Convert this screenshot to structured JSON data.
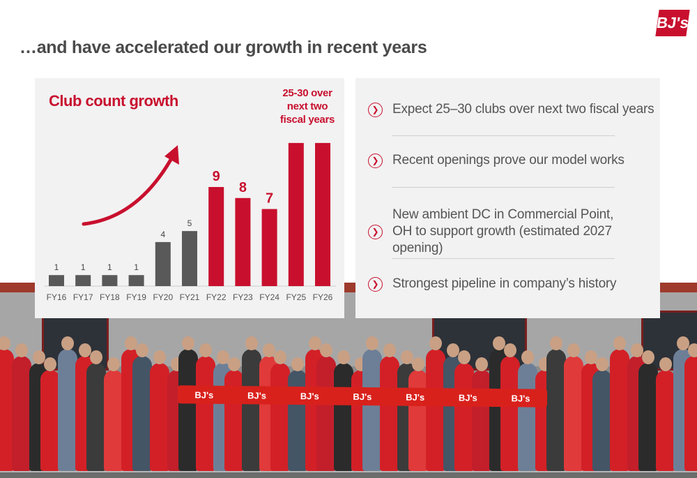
{
  "logo_text": "BJ's",
  "headline": "…and have accelerated our growth in recent years",
  "chart_data": {
    "type": "bar",
    "title": "Club count growth",
    "annotation": "25-30 over next two fiscal years",
    "categories": [
      "FY16",
      "FY17",
      "FY18",
      "FY19",
      "FY20",
      "FY21",
      "FY22",
      "FY23",
      "FY24",
      "FY25",
      "FY26"
    ],
    "values": [
      1,
      1,
      1,
      1,
      4,
      5,
      9,
      8,
      7,
      13,
      13
    ],
    "data_labels": [
      "1",
      "1",
      "1",
      "1",
      "4",
      "5",
      "9",
      "8",
      "7",
      "",
      ""
    ],
    "colors": [
      "#595959",
      "#595959",
      "#595959",
      "#595959",
      "#595959",
      "#595959",
      "#c8102e",
      "#c8102e",
      "#c8102e",
      "#c8102e",
      "#c8102e"
    ],
    "ylim": [
      0,
      13.5
    ],
    "grid": false,
    "xlabel": "",
    "ylabel": ""
  },
  "bullets": [
    {
      "icon": "chevron-right-icon",
      "text": "Expect 25–30 clubs over next two fiscal years"
    },
    {
      "icon": "chevron-right-icon",
      "text": "Recent openings prove our model works"
    },
    {
      "icon": "chevron-right-icon",
      "text": "New ambient DC in Commercial Point, OH to support growth (estimated 2027 opening)"
    },
    {
      "icon": "chevron-right-icon",
      "text": "Strongest pipeline in company’s history"
    }
  ],
  "photo": {
    "ribbon_text": "BJ's"
  },
  "colors": {
    "brand_red": "#c8102e",
    "gray_bar": "#595959",
    "panel_bg": "#f2f2f2"
  }
}
